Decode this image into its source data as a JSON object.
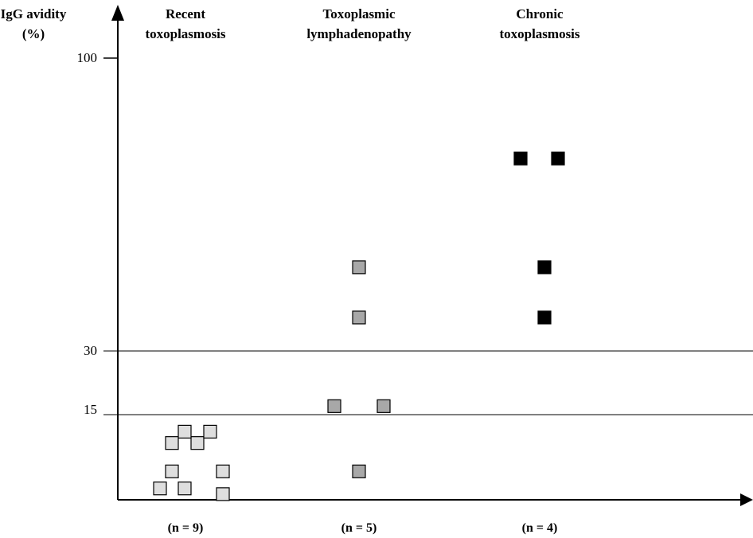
{
  "chart_data": {
    "type": "scatter",
    "ylabel_line1": "IgG avidity",
    "ylabel_line2": "(%)",
    "y_ticks": [
      "100",
      "30",
      "15"
    ],
    "reference_lines": [
      30,
      15
    ],
    "groups": [
      {
        "title_line1": "Recent",
        "title_line2": "toxoplasmosis",
        "count_label": "(n = 9)",
        "fill": "#dedede",
        "values": [
          2,
          2,
          5,
          5,
          10,
          10,
          12,
          12,
          1
        ]
      },
      {
        "title_line1": "Toxoplasmic",
        "title_line2": "lymphadenopathy",
        "count_label": "(n = 5)",
        "fill": "#a8a8a8",
        "values": [
          50,
          38,
          17,
          17,
          5
        ]
      },
      {
        "title_line1": "Chronic",
        "title_line2": "toxoplasmosis",
        "count_label": "(n = 4)",
        "fill": "#000000",
        "values": [
          76,
          76,
          50,
          38
        ]
      }
    ]
  }
}
